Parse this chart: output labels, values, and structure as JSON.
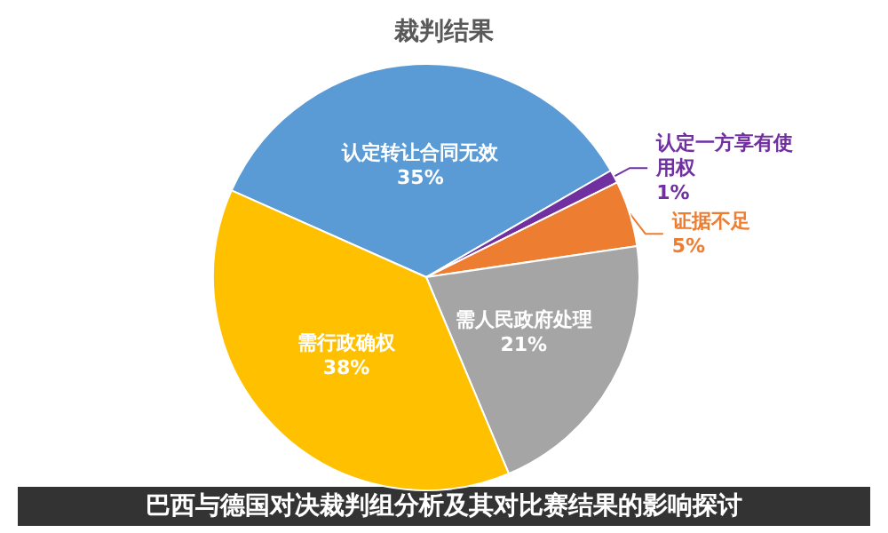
{
  "chart_data": {
    "type": "pie",
    "title": "裁判结果",
    "categories": [
      "认定转让合同无效",
      "认定一方享有使用权",
      "证据不足",
      "需人民政府处理",
      "需行政确权"
    ],
    "values": [
      35,
      1,
      5,
      21,
      38
    ],
    "value_labels": [
      "35%",
      "1%",
      "5%",
      "21%",
      "38%"
    ],
    "colors": [
      "#5b9bd5",
      "#7030a0",
      "#ed7d31",
      "#a5a5a5",
      "#ffc000"
    ],
    "annotations": [
      "巴西与德国对决裁判组分析及其对比赛结果的影响探讨"
    ],
    "legend": false
  }
}
